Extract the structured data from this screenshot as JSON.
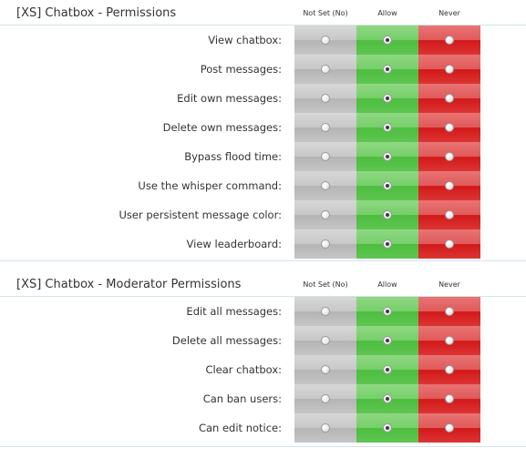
{
  "sections": [
    {
      "title": "[XS] Chatbox - Permissions",
      "columns": {
        "not_set": "Not Set (No)",
        "allow": "Allow",
        "never": "Never"
      },
      "rows": [
        {
          "label": "View chatbox:",
          "selected": "allow"
        },
        {
          "label": "Post messages:",
          "selected": "allow"
        },
        {
          "label": "Edit own messages:",
          "selected": "allow"
        },
        {
          "label": "Delete own messages:",
          "selected": "allow"
        },
        {
          "label": "Bypass flood time:",
          "selected": "allow"
        },
        {
          "label": "Use the whisper command:",
          "selected": "allow"
        },
        {
          "label": "User persistent message color:",
          "selected": "allow"
        },
        {
          "label": "View leaderboard:",
          "selected": "allow"
        }
      ]
    },
    {
      "title": "[XS] Chatbox - Moderator Permissions",
      "columns": {
        "not_set": "Not Set (No)",
        "allow": "Allow",
        "never": "Never"
      },
      "rows": [
        {
          "label": "Edit all messages:",
          "selected": "allow"
        },
        {
          "label": "Delete all messages:",
          "selected": "allow"
        },
        {
          "label": "Clear chatbox:",
          "selected": "allow"
        },
        {
          "label": "Can ban users:",
          "selected": "allow"
        },
        {
          "label": "Can edit notice:",
          "selected": "allow"
        }
      ]
    }
  ],
  "colors": {
    "not_set": "#c6c6c6",
    "allow": "#5fc552",
    "never": "#dc3535",
    "divider": "#d5e4ee"
  }
}
